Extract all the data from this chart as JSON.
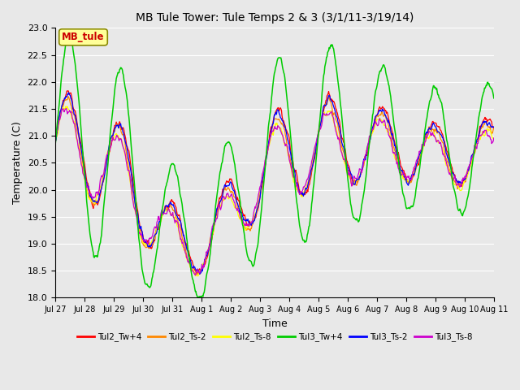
{
  "title": "MB Tule Tower: Tule Temps 2 & 3 (3/1/11-3/19/14)",
  "xlabel": "Time",
  "ylabel": "Temperature (C)",
  "ylim": [
    18.0,
    23.0
  ],
  "yticks": [
    18.0,
    18.5,
    19.0,
    19.5,
    20.0,
    20.5,
    21.0,
    21.5,
    22.0,
    22.5,
    23.0
  ],
  "xtick_labels": [
    "Jul 27",
    "Jul 28",
    "Jul 29",
    "Jul 30",
    "Jul 31",
    "Aug 1",
    "Aug 2",
    "Aug 3",
    "Aug 4",
    "Aug 5",
    "Aug 6",
    "Aug 7",
    "Aug 8",
    "Aug 9",
    "Aug 10",
    "Aug 11"
  ],
  "legend_labels": [
    "Tul2_Tw+4",
    "Tul2_Ts-2",
    "Tul2_Ts-8",
    "Tul3_Tw+4",
    "Tul3_Ts-2",
    "Tul3_Ts-8"
  ],
  "legend_colors": [
    "#ff0000",
    "#ff8800",
    "#ffff00",
    "#00cc00",
    "#0000ff",
    "#cc00cc"
  ],
  "annotation_text": "MB_tule",
  "annotation_fg": "#cc0000",
  "annotation_bg": "#ffff99",
  "annotation_edge": "#888800",
  "background_color": "#e8e8e8",
  "grid_color": "#ffffff",
  "n_days": 15.5,
  "n_points": 800
}
